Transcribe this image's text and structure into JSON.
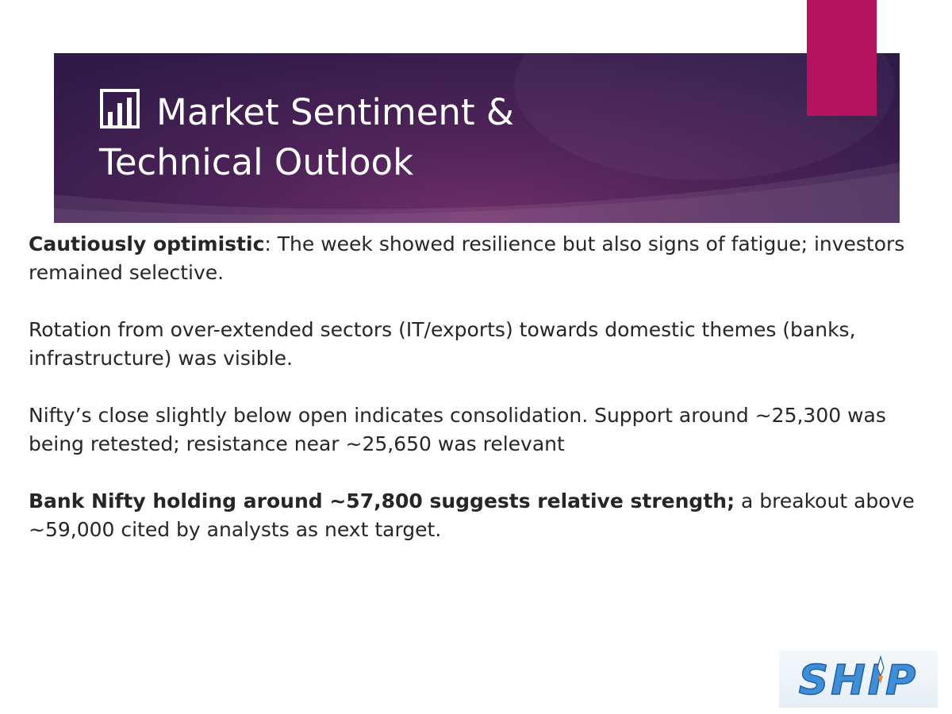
{
  "title": {
    "icon": "bar-chart-icon",
    "line1": "Market Sentiment &",
    "line2": "Technical Outlook"
  },
  "paragraphs": [
    {
      "bold": "Cautiously optimistic",
      "text": ": The week showed resilience but also signs of fatigue; investors remained selective."
    },
    {
      "bold": "",
      "text": "Rotation from over-extended sectors (IT/exports) towards domestic themes (banks, infrastructure) was visible."
    },
    {
      "bold": "",
      "text": "Nifty’s close slightly below open indicates consolidation. Support around ~25,300 was being retested; resistance near ~25,650 was relevant"
    },
    {
      "bold": "Bank Nifty holding around ~57,800 suggests relative strength;",
      "text": " a breakout above ~59,000 cited by analysts as next target."
    }
  ],
  "logo": {
    "text": "SHIP",
    "icon": "rocket-icon"
  },
  "colors": {
    "title_band": "#4d2358",
    "accent": "#b5125f",
    "body_text": "#262626",
    "logo_blue": "#3f8ed8"
  }
}
